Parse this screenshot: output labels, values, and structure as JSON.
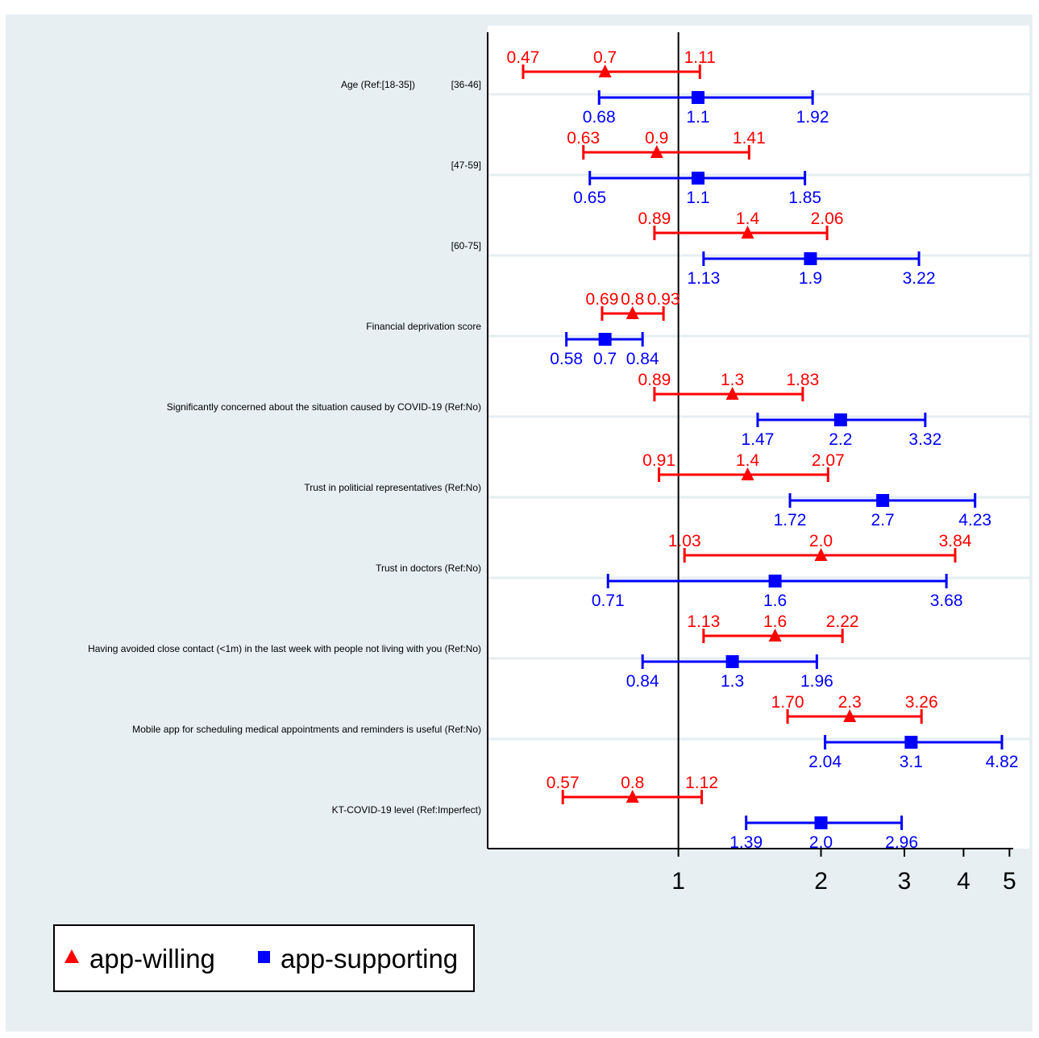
{
  "chart_data": {
    "type": "forest",
    "x_scale": "log",
    "xlim": [
      0.405,
      5.4
    ],
    "reference_line": 1,
    "x_ticks": [
      1,
      2,
      3,
      4,
      5
    ],
    "x_tick_labels": [
      "1",
      "2",
      "3",
      "4",
      "5"
    ],
    "grid": "horizontal",
    "legend_position": "bottom-left",
    "series": [
      {
        "name": "app-willing",
        "color": "#ff0000",
        "marker": "triangle"
      },
      {
        "name": "app-supporting",
        "color": "#0000ff",
        "marker": "square"
      }
    ],
    "rows": [
      {
        "group": "Age (Ref:[18-35])",
        "label": "[36-46]",
        "willing": {
          "est": 0.7,
          "lo": 0.47,
          "hi": 1.11,
          "labels": [
            "0.47",
            "0.7",
            "1.11"
          ]
        },
        "supporting": {
          "est": 1.1,
          "lo": 0.68,
          "hi": 1.92,
          "labels": [
            "0.68",
            "1.1",
            "1.92"
          ]
        }
      },
      {
        "group": "",
        "label": "[47-59]",
        "willing": {
          "est": 0.9,
          "lo": 0.63,
          "hi": 1.41,
          "labels": [
            "0.63",
            "0.9",
            "1.41"
          ]
        },
        "supporting": {
          "est": 1.1,
          "lo": 0.65,
          "hi": 1.85,
          "labels": [
            "0.65",
            "1.1",
            "1.85"
          ]
        }
      },
      {
        "group": "",
        "label": "[60-75]",
        "willing": {
          "est": 1.4,
          "lo": 0.89,
          "hi": 2.06,
          "labels": [
            "0.89",
            "1.4",
            "2.06"
          ]
        },
        "supporting": {
          "est": 1.9,
          "lo": 1.13,
          "hi": 3.22,
          "labels": [
            "1.13",
            "1.9",
            "3.22"
          ]
        }
      },
      {
        "group": "",
        "label": "Financial deprivation score",
        "willing": {
          "est": 0.8,
          "lo": 0.69,
          "hi": 0.93,
          "labels": [
            "0.69",
            "0.8",
            "0.93"
          ]
        },
        "supporting": {
          "est": 0.7,
          "lo": 0.58,
          "hi": 0.84,
          "labels": [
            "0.58",
            "0.7",
            "0.84"
          ]
        }
      },
      {
        "group": "",
        "label": "Significantly concerned about the situation caused by COVID-19 (Ref:No)",
        "willing": {
          "est": 1.3,
          "lo": 0.89,
          "hi": 1.83,
          "labels": [
            "0.89",
            "1.3",
            "1.83"
          ]
        },
        "supporting": {
          "est": 2.2,
          "lo": 1.47,
          "hi": 3.32,
          "labels": [
            "1.47",
            "2.2",
            "3.32"
          ]
        }
      },
      {
        "group": "",
        "label": "Trust in politicial representatives (Ref:No)",
        "willing": {
          "est": 1.4,
          "lo": 0.91,
          "hi": 2.07,
          "labels": [
            "0.91",
            "1.4",
            "2.07"
          ]
        },
        "supporting": {
          "est": 2.7,
          "lo": 1.72,
          "hi": 4.23,
          "labels": [
            "1.72",
            "2.7",
            "4.23"
          ]
        }
      },
      {
        "group": "",
        "label": "Trust in doctors (Ref:No)",
        "willing": {
          "est": 2.0,
          "lo": 1.03,
          "hi": 3.84,
          "labels": [
            "1.03",
            "2.0",
            "3.84"
          ]
        },
        "supporting": {
          "est": 1.6,
          "lo": 0.71,
          "hi": 3.68,
          "labels": [
            "0.71",
            "1.6",
            "3.68"
          ]
        }
      },
      {
        "group": "",
        "label": "Having avoided close contact (<1m) in the last week with people not living with you (Ref:No)",
        "willing": {
          "est": 1.6,
          "lo": 1.13,
          "hi": 2.22,
          "labels": [
            "1.13",
            "1.6",
            "2.22"
          ]
        },
        "supporting": {
          "est": 1.3,
          "lo": 0.84,
          "hi": 1.96,
          "labels": [
            "0.84",
            "1.3",
            "1.96"
          ]
        }
      },
      {
        "group": "",
        "label": "Mobile app for scheduling medical appointments and reminders is useful (Ref:No)",
        "willing": {
          "est": 2.3,
          "lo": 1.7,
          "hi": 3.26,
          "labels": [
            "1.70",
            "2.3",
            "3.26"
          ]
        },
        "supporting": {
          "est": 3.1,
          "lo": 2.04,
          "hi": 4.82,
          "labels": [
            "2.04",
            "3.1",
            "4.82"
          ]
        }
      },
      {
        "group": "",
        "label": "KT-COVID-19 level (Ref:Imperfect)",
        "willing": {
          "est": 0.8,
          "lo": 0.57,
          "hi": 1.12,
          "labels": [
            "0.57",
            "0.8",
            "1.12"
          ]
        },
        "supporting": {
          "est": 2.0,
          "lo": 1.39,
          "hi": 2.96,
          "labels": [
            "1.39",
            "2.0",
            "2.96"
          ]
        }
      }
    ]
  }
}
